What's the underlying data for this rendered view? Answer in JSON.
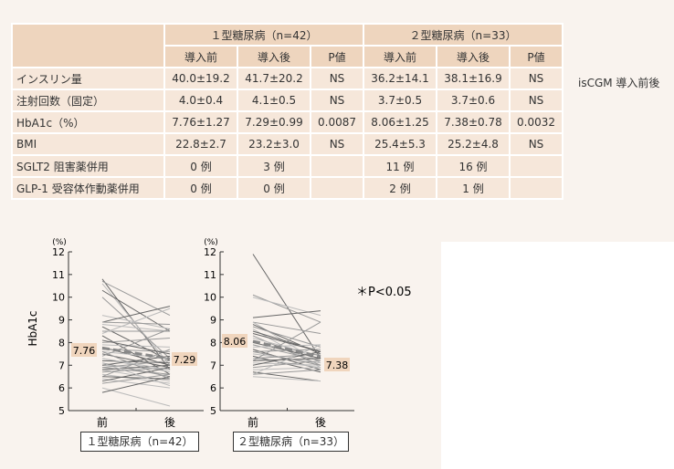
{
  "table": {
    "group1": "１型糖尿病（n=42）",
    "group2": "２型糖尿病（n=33）",
    "subheaders": [
      "導入前",
      "導入後",
      "P値",
      "導入前",
      "導入後",
      "P値"
    ],
    "rows": [
      {
        "label": "インスリン量",
        "values": [
          "40.0±19.2",
          "41.7±20.2",
          "NS",
          "36.2±14.1",
          "38.1±16.9",
          "NS"
        ]
      },
      {
        "label": "注射回数（固定）",
        "values": [
          "4.0±0.4",
          "4.1±0.5",
          "NS",
          "3.7±0.5",
          "3.7±0.6",
          "NS"
        ]
      },
      {
        "label": "HbA1c（%）",
        "values": [
          "7.76±1.27",
          "7.29±0.99",
          "0.0087",
          "8.06±1.25",
          "7.38±0.78",
          "0.0032"
        ]
      },
      {
        "label": "BMI",
        "values": [
          "22.8±2.7",
          "23.2±3.0",
          "NS",
          "25.4±5.3",
          "25.2±4.8",
          "NS"
        ]
      },
      {
        "label": "SGLT2 阻害薬併用",
        "values": [
          "0 例",
          "3 例",
          "",
          "11 例",
          "16 例",
          ""
        ]
      },
      {
        "label": "GLP-1 受容体作動薬併用",
        "values": [
          "0 例",
          "0 例",
          "",
          "2 例",
          "1 例",
          ""
        ]
      }
    ],
    "side_note": "isCGM 導入前後"
  },
  "chart_data": [
    {
      "type": "line",
      "title": "１型糖尿病（n=42）",
      "ylabel": "HbA1c",
      "yunit": "(%)",
      "ylim": [
        5,
        12
      ],
      "yticks": [
        5,
        6,
        7,
        8,
        9,
        10,
        11,
        12
      ],
      "categories": [
        "前",
        "後"
      ],
      "mean": [
        7.76,
        7.29
      ],
      "mean_labels": [
        "7.76",
        "7.29"
      ],
      "pairs": [
        [
          10.8,
          6.8
        ],
        [
          10.7,
          9.2
        ],
        [
          10.6,
          7.0
        ],
        [
          10.3,
          8.5
        ],
        [
          10.0,
          7.3
        ],
        [
          9.2,
          8.6
        ],
        [
          8.9,
          9.6
        ],
        [
          8.9,
          8.8
        ],
        [
          8.8,
          8.5
        ],
        [
          8.7,
          7.2
        ],
        [
          8.5,
          8.5
        ],
        [
          8.4,
          9.5
        ],
        [
          8.3,
          6.6
        ],
        [
          8.0,
          8.2
        ],
        [
          7.9,
          7.8
        ],
        [
          7.8,
          7.0
        ],
        [
          7.7,
          7.6
        ],
        [
          7.6,
          7.3
        ],
        [
          7.5,
          6.9
        ],
        [
          7.4,
          8.6
        ],
        [
          7.3,
          6.7
        ],
        [
          7.2,
          7.1
        ],
        [
          7.1,
          6.5
        ],
        [
          7.0,
          6.8
        ],
        [
          7.0,
          7.4
        ],
        [
          6.9,
          6.6
        ],
        [
          6.8,
          6.3
        ],
        [
          6.8,
          7.0
        ],
        [
          6.7,
          6.9
        ],
        [
          6.6,
          6.2
        ],
        [
          6.5,
          6.4
        ],
        [
          6.5,
          7.7
        ],
        [
          6.4,
          6.0
        ],
        [
          6.3,
          6.9
        ],
        [
          6.2,
          6.6
        ],
        [
          6.0,
          5.2
        ],
        [
          5.8,
          6.5
        ],
        [
          7.6,
          6.4
        ],
        [
          7.1,
          6.1
        ],
        [
          8.1,
          7.5
        ],
        [
          6.9,
          7.2
        ],
        [
          7.3,
          6.8
        ]
      ]
    },
    {
      "type": "line",
      "title": "２型糖尿病（n=33）",
      "yunit": "(%)",
      "ylim": [
        5,
        12
      ],
      "yticks": [
        5,
        6,
        7,
        8,
        9,
        10,
        11,
        12
      ],
      "categories": [
        "前",
        "後"
      ],
      "mean": [
        8.06,
        7.38
      ],
      "mean_labels": [
        "8.06",
        "7.38"
      ],
      "pairs": [
        [
          11.9,
          7.3
        ],
        [
          10.1,
          8.9
        ],
        [
          10.0,
          9.2
        ],
        [
          9.1,
          9.4
        ],
        [
          8.9,
          8.4
        ],
        [
          8.9,
          7.1
        ],
        [
          8.8,
          7.5
        ],
        [
          8.7,
          7.8
        ],
        [
          8.6,
          6.9
        ],
        [
          8.5,
          7.6
        ],
        [
          8.3,
          7.0
        ],
        [
          8.2,
          7.4
        ],
        [
          8.0,
          7.3
        ],
        [
          7.9,
          7.2
        ],
        [
          7.8,
          7.9
        ],
        [
          7.7,
          6.8
        ],
        [
          7.6,
          7.7
        ],
        [
          7.5,
          7.1
        ],
        [
          7.4,
          6.7
        ],
        [
          7.3,
          7.5
        ],
        [
          7.3,
          6.9
        ],
        [
          7.2,
          7.3
        ],
        [
          7.2,
          8.9
        ],
        [
          7.1,
          7.0
        ],
        [
          7.0,
          7.6
        ],
        [
          6.9,
          7.2
        ],
        [
          6.8,
          6.9
        ],
        [
          6.7,
          6.3
        ],
        [
          6.6,
          6.8
        ],
        [
          6.6,
          7.9
        ],
        [
          8.4,
          7.6
        ],
        [
          7.6,
          7.0
        ],
        [
          6.5,
          6.3
        ]
      ]
    }
  ],
  "annotation": "＊P<0.05",
  "colors": {
    "header": "#eed5be",
    "cell": "#f6e7da",
    "background": "#f9f3ee",
    "label_box": "#f0d5bd"
  }
}
